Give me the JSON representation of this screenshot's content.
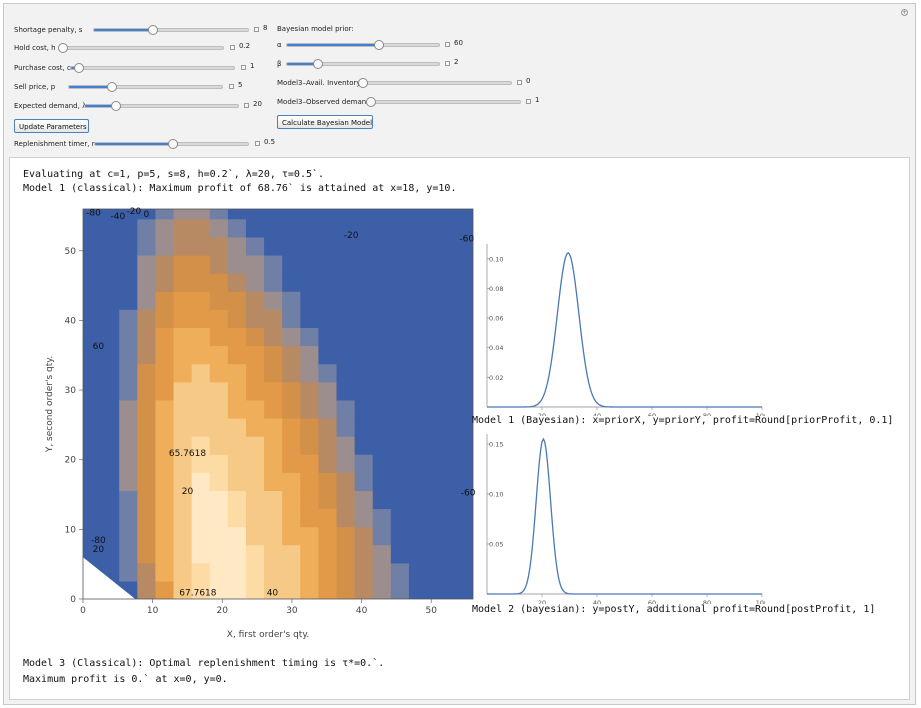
{
  "controls": {
    "shortage": {
      "label": "Shortage penalty, s",
      "value": "8",
      "fraction": 0.38
    },
    "hold": {
      "label": "Hold cost, h",
      "value": "0.2",
      "fraction": 0.02
    },
    "purchase": {
      "label": "Purchase cost, c",
      "value": "1",
      "fraction": 0.05
    },
    "sell": {
      "label": "Sell price, p",
      "value": "5",
      "fraction": 0.28
    },
    "demand": {
      "label": "Expected demand, λ",
      "value": "20",
      "fraction": 0.2
    },
    "update_button": "Update Parameters",
    "replenish": {
      "label": "Replenishment timer, r",
      "value": "0.5",
      "fraction": 0.5
    },
    "bayes_header": "Bayesian model prior:",
    "alpha": {
      "label": "α",
      "value": "60",
      "fraction": 0.6
    },
    "beta": {
      "label": "β",
      "value": "2",
      "fraction": 0.2
    },
    "inventory": {
      "label": "Model3–Avail. Inventory",
      "value": "0",
      "fraction": 0.0
    },
    "observed": {
      "label": "Model3–Observed demand",
      "value": "1",
      "fraction": 0.01
    },
    "calc_button": "Calculate Bayesian Model"
  },
  "output": {
    "line1": "Evaluating at c=1, p=5, s=8, h=0.2`, λ=20, τ=0.5`.",
    "line2": "Model 1 (classical): Maximum profit of 68.76` is attained at x=18, y=10.",
    "model1_bayes": "Model 1 (Bayesian): x=priorX, y=priorY, profit=Round[priorProfit, 0.1]",
    "model2_bayes": "Model 2 (bayesian): y=postY, additional profit=Round[postProfit, 1]",
    "model3_line1": "Model 3 (Classical): Optimal replenishment timing is τ*=0.`.",
    "model3_line2": "Maximum profit is 0.` at x=0, y=0."
  },
  "chart_data": [
    {
      "type": "contour",
      "xlabel": "X, first order's qty.",
      "ylabel": "Y, second order's qty.",
      "xlim": [
        0,
        56
      ],
      "ylim": [
        0,
        56
      ],
      "x_ticks": [
        0,
        10,
        20,
        30,
        40,
        50
      ],
      "y_ticks": [
        0,
        10,
        20,
        30,
        40,
        50
      ],
      "contour_labels": [
        "-80",
        "-40",
        "-20",
        "0",
        "-20",
        "-60",
        "60",
        "65.7618",
        "20",
        "-60",
        "-80",
        "20",
        "67.7618",
        "40"
      ],
      "maximum": {
        "x": 18,
        "y": 10,
        "value": 68.76
      },
      "colors": {
        "low": "#3d5fa8",
        "mid": "#e8a14e",
        "high": "#fde8bd"
      }
    },
    {
      "type": "line",
      "xlim": [
        0,
        100
      ],
      "ylim": [
        0,
        0.11
      ],
      "x_ticks": [
        20,
        40,
        60,
        80,
        100
      ],
      "y_ticks": [
        0.02,
        0.04,
        0.06,
        0.08,
        0.1
      ],
      "y_tick_labels": [
        "0.02",
        "0.04",
        "0.06",
        "0.08",
        "0.10"
      ],
      "series": [
        {
          "peak_x": 29.5,
          "peak_y": 0.104,
          "sigma": 3.9
        }
      ],
      "color": "#4a78b5"
    },
    {
      "type": "line",
      "xlim": [
        0,
        100
      ],
      "ylim": [
        0,
        0.16
      ],
      "x_ticks": [
        20,
        40,
        60,
        80,
        100
      ],
      "y_ticks": [
        0.05,
        0.1,
        0.15
      ],
      "y_tick_labels": [
        "0.05",
        "0.10",
        "0.15"
      ],
      "series": [
        {
          "peak_x": 20.5,
          "peak_y": 0.155,
          "sigma": 2.6
        }
      ],
      "color": "#4a78b5"
    }
  ]
}
